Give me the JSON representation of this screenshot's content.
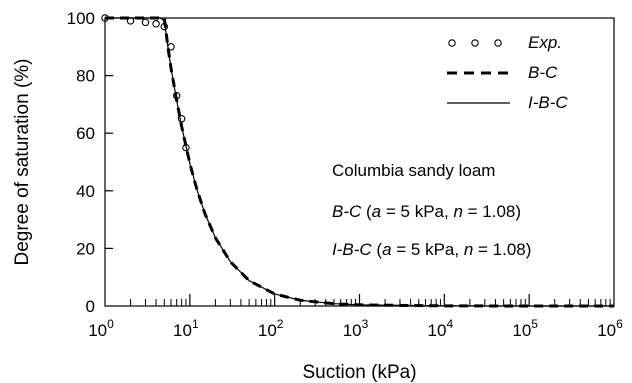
{
  "chart_data": {
    "type": "line",
    "xscale": "log",
    "xlim": [
      1,
      1000000
    ],
    "ylim": [
      0,
      100
    ],
    "xlabel": "Suction (kPa)",
    "ylabel": "Degree of saturation (%)",
    "xticks": [
      {
        "base": "10",
        "exp": "0"
      },
      {
        "base": "10",
        "exp": "1"
      },
      {
        "base": "10",
        "exp": "2"
      },
      {
        "base": "10",
        "exp": "3"
      },
      {
        "base": "10",
        "exp": "4"
      },
      {
        "base": "10",
        "exp": "5"
      },
      {
        "base": "10",
        "exp": "6"
      }
    ],
    "yticks": [
      "0",
      "20",
      "40",
      "60",
      "80",
      "100"
    ],
    "grid": false,
    "legend_position": "top-right",
    "series": [
      {
        "name": "Exp.",
        "style": "markers",
        "points": [
          {
            "x": 1.0,
            "y": 100
          },
          {
            "x": 2.0,
            "y": 99
          },
          {
            "x": 3.0,
            "y": 98.5
          },
          {
            "x": 4.0,
            "y": 98
          },
          {
            "x": 5.0,
            "y": 97
          },
          {
            "x": 6.0,
            "y": 90
          },
          {
            "x": 7.0,
            "y": 73
          },
          {
            "x": 8.0,
            "y": 65
          },
          {
            "x": 9.0,
            "y": 55
          }
        ]
      },
      {
        "name": "B-C",
        "style": "dashed",
        "points": [
          {
            "x": 1,
            "y": 100
          },
          {
            "x": 5,
            "y": 100
          },
          {
            "x": 5.5,
            "y": 90.2
          },
          {
            "x": 6,
            "y": 82.6
          },
          {
            "x": 7,
            "y": 71.4
          },
          {
            "x": 8,
            "y": 62.4
          },
          {
            "x": 10,
            "y": 49.5
          },
          {
            "x": 12,
            "y": 40.9
          },
          {
            "x": 15,
            "y": 32.2
          },
          {
            "x": 20,
            "y": 23.7
          },
          {
            "x": 30,
            "y": 15.4
          },
          {
            "x": 50,
            "y": 8.8
          },
          {
            "x": 100,
            "y": 4.2
          },
          {
            "x": 200,
            "y": 2.0
          },
          {
            "x": 500,
            "y": 0.8
          },
          {
            "x": 1000,
            "y": 0.4
          },
          {
            "x": 10000,
            "y": 0.04
          },
          {
            "x": 100000,
            "y": 0.0
          },
          {
            "x": 1000000,
            "y": 0.0
          }
        ]
      },
      {
        "name": "I-B-C",
        "style": "solid",
        "points": [
          {
            "x": 1,
            "y": 100
          },
          {
            "x": 4.5,
            "y": 100
          },
          {
            "x": 5,
            "y": 99
          },
          {
            "x": 5.5,
            "y": 90.2
          },
          {
            "x": 6,
            "y": 82.6
          },
          {
            "x": 7,
            "y": 71.4
          },
          {
            "x": 8,
            "y": 62.4
          },
          {
            "x": 10,
            "y": 49.5
          },
          {
            "x": 12,
            "y": 40.9
          },
          {
            "x": 15,
            "y": 32.2
          },
          {
            "x": 20,
            "y": 23.7
          },
          {
            "x": 30,
            "y": 15.4
          },
          {
            "x": 50,
            "y": 8.8
          },
          {
            "x": 100,
            "y": 4.2
          },
          {
            "x": 200,
            "y": 2.0
          },
          {
            "x": 500,
            "y": 0.8
          },
          {
            "x": 1000,
            "y": 0.4
          },
          {
            "x": 10000,
            "y": 0.04
          },
          {
            "x": 100000,
            "y": 0.0
          },
          {
            "x": 1000000,
            "y": 0.0
          }
        ]
      }
    ],
    "annotations": {
      "title": "Columbia sandy loam",
      "line1": {
        "model": "B-C",
        "open": " (",
        "param1": "a",
        "value1": " = 5 kPa, ",
        "param2": "n",
        "value2": " = 1.08)"
      },
      "line2": {
        "model": "I-B-C",
        "open": " (",
        "param1": "a",
        "value1": " = 5 kPa, ",
        "param2": "n",
        "value2": " = 1.08)"
      }
    }
  }
}
